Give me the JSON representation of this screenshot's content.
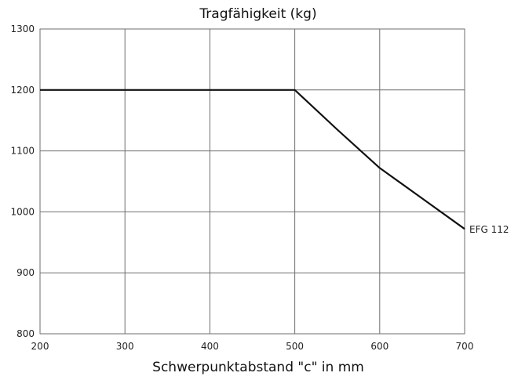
{
  "chart_data": {
    "type": "line",
    "title": "Tragfähigkeit (kg)",
    "xlabel": "Schwerpunktabstand \"c\" in mm",
    "ylabel": "",
    "xlim": [
      200,
      700
    ],
    "ylim": [
      800,
      1300
    ],
    "x_ticks": [
      200,
      300,
      400,
      500,
      600,
      700
    ],
    "y_ticks": [
      800,
      900,
      1000,
      1100,
      1200,
      1300
    ],
    "grid": true,
    "series": [
      {
        "name": "EFG 112",
        "x": [
          200,
          300,
          400,
          500,
          550,
          600,
          650,
          700
        ],
        "y": [
          1200,
          1200,
          1200,
          1200,
          1135,
          1072,
          1022,
          972
        ]
      }
    ]
  }
}
